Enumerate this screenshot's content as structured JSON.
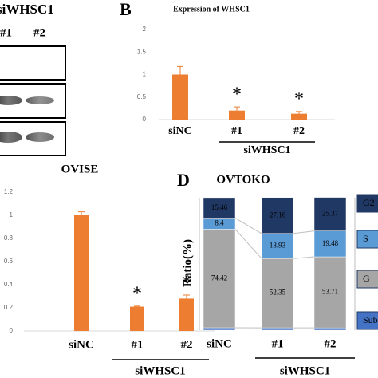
{
  "blot": {
    "label": "siWHSC1",
    "lanes": [
      "#1",
      "#2"
    ]
  },
  "chart_data": [
    {
      "type": "bar",
      "panel": "B",
      "title": "Expression of WHSC1",
      "categories": [
        "siNC",
        "#1",
        "#2"
      ],
      "values": [
        1.0,
        0.2,
        0.13
      ],
      "errors": [
        0.18,
        0.08,
        0.05
      ],
      "significance": [
        null,
        "*",
        "*"
      ],
      "group_label": "siWHSC1",
      "color": "#ed7d31",
      "ylim": [
        0,
        2
      ],
      "yticks": [
        0,
        0.5,
        1,
        1.5,
        2
      ]
    },
    {
      "type": "bar",
      "title": "OVISE",
      "categories": [
        "siNC",
        "#1",
        "#2"
      ],
      "values": [
        1.0,
        0.21,
        0.28
      ],
      "errors": [
        0.03,
        0.005,
        0.03
      ],
      "significance": [
        null,
        "*",
        "*"
      ],
      "group_label": "siWHSC1",
      "color": "#ed7d31",
      "ylim": [
        0,
        1.2
      ],
      "yticks": [
        0,
        0.2,
        0.4,
        0.6,
        0.8,
        1,
        1.2
      ]
    },
    {
      "type": "stacked_bar",
      "panel": "D",
      "title": "OVTOKO",
      "y_label": "Ratio(%)",
      "categories": [
        "siNC",
        "#1",
        "#2"
      ],
      "group_label": "siWHSC1",
      "ylim": [
        0,
        100
      ],
      "series": [
        {
          "name": "Sub",
          "color": "#4472c4",
          "values": [
            1.79,
            1.75,
            1.7
          ]
        },
        {
          "name": "G",
          "color": "#a6a6a6",
          "values": [
            74.42,
            52.35,
            53.71
          ]
        },
        {
          "name": "S",
          "color": "#5b9bd5",
          "values": [
            8.4,
            18.93,
            19.48
          ]
        },
        {
          "name": "G2",
          "color": "#203864",
          "values": [
            15.46,
            27.16,
            25.37
          ]
        }
      ]
    }
  ]
}
